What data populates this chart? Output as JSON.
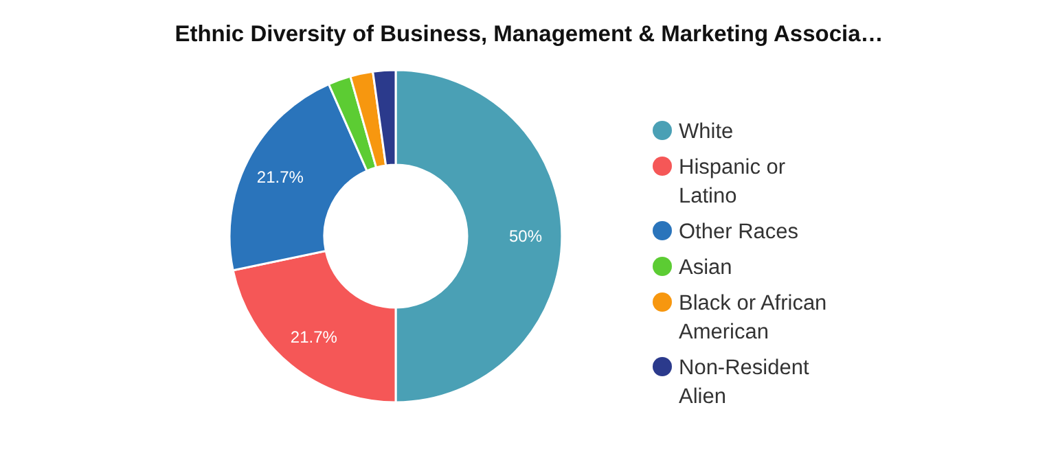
{
  "chart_data": {
    "type": "donut",
    "title": "Ethnic Diversity of Business, Management & Marketing Associa…",
    "categories": [
      "White",
      "Hispanic or Latino",
      "Other Races",
      "Asian",
      "Black or African American",
      "Non-Resident Alien"
    ],
    "values": [
      50,
      21.7,
      21.7,
      2.2,
      2.2,
      2.2
    ],
    "value_labels": [
      "50%",
      "21.7%",
      "21.7%",
      null,
      null,
      null
    ],
    "colors": [
      "#4aa0b5",
      "#f55757",
      "#2a74bb",
      "#5ccc33",
      "#f7970f",
      "#2b3a8c"
    ],
    "legend": "right"
  }
}
